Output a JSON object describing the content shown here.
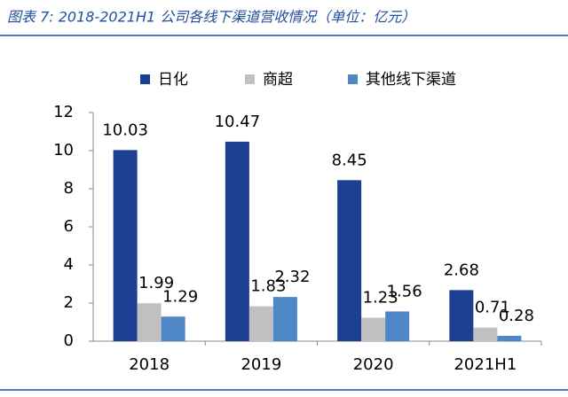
{
  "chart_data": {
    "type": "bar",
    "title": "图表 7: 2018-2021H1 公司各线下渠道营收情况（单位：亿元）",
    "categories": [
      "2018",
      "2019",
      "2020",
      "2021H1"
    ],
    "series": [
      {
        "name": "日化",
        "color": "#1c3f94",
        "values": [
          10.03,
          10.47,
          8.45,
          2.68
        ]
      },
      {
        "name": "商超",
        "color": "#c0c0c0",
        "values": [
          1.99,
          1.83,
          1.23,
          0.71
        ]
      },
      {
        "name": "其他线下渠道",
        "color": "#4f86c6",
        "values": [
          1.29,
          2.32,
          1.56,
          0.28
        ]
      }
    ],
    "ylim": [
      0,
      12
    ],
    "yticks": [
      0,
      2,
      4,
      6,
      8,
      10,
      12
    ],
    "grid": false,
    "legend": "top"
  }
}
